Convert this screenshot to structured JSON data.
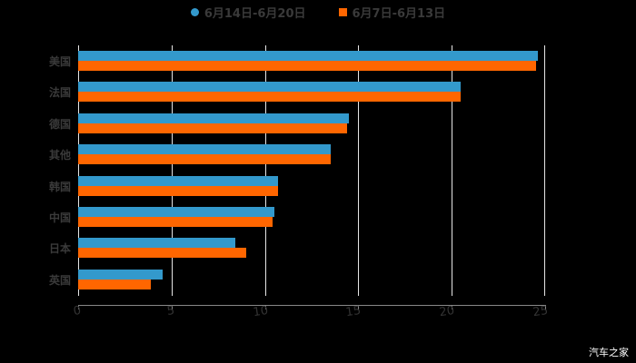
{
  "chart_data": {
    "type": "bar",
    "orientation": "horizontal",
    "title": "",
    "xlabel": "",
    "ylabel": "",
    "xlim": [
      0,
      25
    ],
    "xticks": [
      "0",
      "5",
      "10",
      "15",
      "20",
      "25"
    ],
    "grid": true,
    "legend_position": "top",
    "categories": [
      "美国",
      "法国",
      "德国",
      "其他",
      "韩国",
      "中国",
      "日本",
      "英国"
    ],
    "series": [
      {
        "name": "6月14日-6月20日",
        "color": "#3399cc",
        "values": [
          24.6,
          20.5,
          14.5,
          13.5,
          10.7,
          10.5,
          8.4,
          4.5
        ]
      },
      {
        "name": "6月7日-6月13日",
        "color": "#ff6600",
        "values": [
          24.5,
          20.5,
          14.4,
          13.5,
          10.7,
          10.4,
          9.0,
          3.9
        ]
      }
    ]
  },
  "legend": {
    "series0": "6月14日-6月20日",
    "series1": "6月7日-6月13日"
  },
  "watermark": "汽车之家"
}
